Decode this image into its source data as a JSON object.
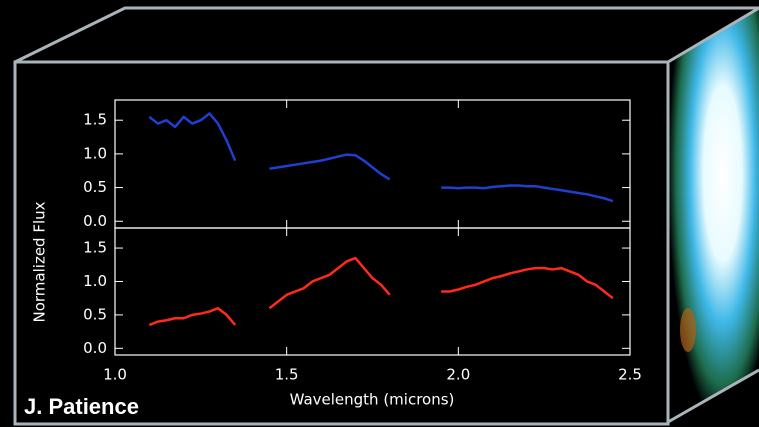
{
  "credit": "J. Patience",
  "chart_data": [
    {
      "type": "line",
      "ylabel": "Normalized Flux",
      "x": [
        1.1,
        1.125,
        1.15,
        1.175,
        1.2,
        1.225,
        1.25,
        1.275,
        1.3,
        1.325,
        1.35,
        1.4,
        1.45,
        1.475,
        1.5,
        1.525,
        1.55,
        1.575,
        1.6,
        1.625,
        1.65,
        1.675,
        1.7,
        1.725,
        1.75,
        1.775,
        1.8,
        1.875,
        1.95,
        1.975,
        2.0,
        2.025,
        2.05,
        2.075,
        2.1,
        2.125,
        2.15,
        2.175,
        2.2,
        2.225,
        2.25,
        2.275,
        2.3,
        2.325,
        2.35,
        2.375,
        2.4,
        2.425,
        2.45
      ],
      "xlim": [
        1.0,
        2.5
      ],
      "ylim": [
        -0.1,
        1.8
      ],
      "yticks": [
        {
          "value": 0,
          "label": "0.0"
        },
        0.5,
        {
          "value": 1,
          "label": "1.0"
        },
        1.5
      ],
      "series": [
        {
          "color": "#1f3fd0",
          "values": [
            1.55,
            1.45,
            1.5,
            1.4,
            1.55,
            1.45,
            1.5,
            1.6,
            1.45,
            1.2,
            0.9,
            null,
            0.78,
            0.8,
            0.82,
            0.84,
            0.86,
            0.88,
            0.9,
            0.93,
            0.96,
            0.99,
            0.98,
            0.9,
            0.8,
            0.7,
            0.62,
            null,
            0.5,
            0.5,
            0.49,
            0.5,
            0.5,
            0.49,
            0.51,
            0.52,
            0.53,
            0.53,
            0.52,
            0.52,
            0.5,
            0.48,
            0.46,
            0.44,
            0.42,
            0.4,
            0.37,
            0.34,
            0.3
          ]
        }
      ]
    },
    {
      "type": "line",
      "xlabel": "Wavelength (microns)",
      "x": [
        1.1,
        1.125,
        1.15,
        1.175,
        1.2,
        1.225,
        1.25,
        1.275,
        1.3,
        1.325,
        1.35,
        1.4,
        1.45,
        1.475,
        1.5,
        1.525,
        1.55,
        1.575,
        1.6,
        1.625,
        1.65,
        1.675,
        1.7,
        1.725,
        1.75,
        1.775,
        1.8,
        1.875,
        1.95,
        1.975,
        2.0,
        2.025,
        2.05,
        2.075,
        2.1,
        2.125,
        2.15,
        2.175,
        2.2,
        2.225,
        2.25,
        2.275,
        2.3,
        2.325,
        2.35,
        2.375,
        2.4,
        2.425,
        2.45
      ],
      "xlim": [
        1.0,
        2.5
      ],
      "ylim": [
        -0.1,
        1.8
      ],
      "xticks": [
        {
          "value": 1,
          "label": "1.0"
        },
        1.5,
        {
          "value": 2,
          "label": "2.0"
        },
        2.5
      ],
      "yticks": [
        {
          "value": 0,
          "label": "0.0"
        },
        0.5,
        {
          "value": 1,
          "label": "1.0"
        },
        1.5
      ],
      "series": [
        {
          "color": "#ff2a1a",
          "values": [
            0.35,
            0.4,
            0.42,
            0.45,
            0.45,
            0.5,
            0.52,
            0.55,
            0.6,
            0.5,
            0.35,
            null,
            0.6,
            0.7,
            0.8,
            0.85,
            0.9,
            1.0,
            1.05,
            1.1,
            1.2,
            1.3,
            1.35,
            1.2,
            1.05,
            0.95,
            0.8,
            null,
            0.85,
            0.85,
            0.88,
            0.92,
            0.95,
            1.0,
            1.05,
            1.08,
            1.12,
            1.15,
            1.18,
            1.2,
            1.2,
            1.18,
            1.2,
            1.15,
            1.1,
            1.0,
            0.95,
            0.85,
            0.75
          ]
        }
      ]
    }
  ]
}
